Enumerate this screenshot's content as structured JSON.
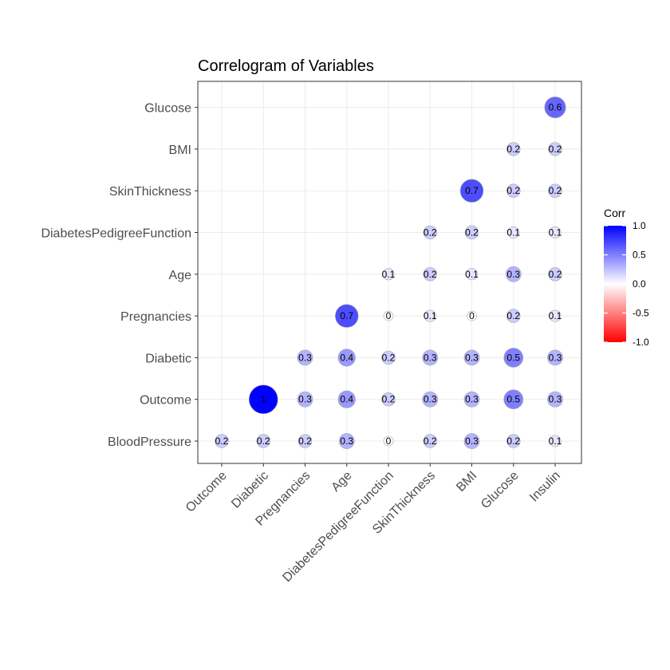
{
  "chart_data": {
    "type": "heatmap",
    "title": "Correlogram of Variables",
    "xlabel": "",
    "ylabel": "",
    "x_categories": [
      "Outcome",
      "Diabetic",
      "Pregnancies",
      "Age",
      "DiabetesPedigreeFunction",
      "SkinThickness",
      "BMI",
      "Glucose",
      "Insulin"
    ],
    "y_categories": [
      "BloodPressure",
      "Outcome",
      "Diabetic",
      "Pregnancies",
      "Age",
      "DiabetesPedigreeFunction",
      "SkinThickness",
      "BMI",
      "Glucose"
    ],
    "cells": [
      {
        "x": "Outcome",
        "y": "BloodPressure",
        "value": 0.2
      },
      {
        "x": "Diabetic",
        "y": "BloodPressure",
        "value": 0.2
      },
      {
        "x": "Pregnancies",
        "y": "BloodPressure",
        "value": 0.2
      },
      {
        "x": "Age",
        "y": "BloodPressure",
        "value": 0.3
      },
      {
        "x": "DiabetesPedigreeFunction",
        "y": "BloodPressure",
        "value": 0
      },
      {
        "x": "SkinThickness",
        "y": "BloodPressure",
        "value": 0.2
      },
      {
        "x": "BMI",
        "y": "BloodPressure",
        "value": 0.3
      },
      {
        "x": "Glucose",
        "y": "BloodPressure",
        "value": 0.2
      },
      {
        "x": "Insulin",
        "y": "BloodPressure",
        "value": 0.1
      },
      {
        "x": "Diabetic",
        "y": "Outcome",
        "value": 1
      },
      {
        "x": "Pregnancies",
        "y": "Outcome",
        "value": 0.3
      },
      {
        "x": "Age",
        "y": "Outcome",
        "value": 0.4
      },
      {
        "x": "DiabetesPedigreeFunction",
        "y": "Outcome",
        "value": 0.2
      },
      {
        "x": "SkinThickness",
        "y": "Outcome",
        "value": 0.3
      },
      {
        "x": "BMI",
        "y": "Outcome",
        "value": 0.3
      },
      {
        "x": "Glucose",
        "y": "Outcome",
        "value": 0.5
      },
      {
        "x": "Insulin",
        "y": "Outcome",
        "value": 0.3
      },
      {
        "x": "Pregnancies",
        "y": "Diabetic",
        "value": 0.3
      },
      {
        "x": "Age",
        "y": "Diabetic",
        "value": 0.4
      },
      {
        "x": "DiabetesPedigreeFunction",
        "y": "Diabetic",
        "value": 0.2
      },
      {
        "x": "SkinThickness",
        "y": "Diabetic",
        "value": 0.3
      },
      {
        "x": "BMI",
        "y": "Diabetic",
        "value": 0.3
      },
      {
        "x": "Glucose",
        "y": "Diabetic",
        "value": 0.5
      },
      {
        "x": "Insulin",
        "y": "Diabetic",
        "value": 0.3
      },
      {
        "x": "Age",
        "y": "Pregnancies",
        "value": 0.7
      },
      {
        "x": "DiabetesPedigreeFunction",
        "y": "Pregnancies",
        "value": 0
      },
      {
        "x": "SkinThickness",
        "y": "Pregnancies",
        "value": 0.1
      },
      {
        "x": "BMI",
        "y": "Pregnancies",
        "value": 0
      },
      {
        "x": "Glucose",
        "y": "Pregnancies",
        "value": 0.2
      },
      {
        "x": "Insulin",
        "y": "Pregnancies",
        "value": 0.1
      },
      {
        "x": "DiabetesPedigreeFunction",
        "y": "Age",
        "value": 0.1
      },
      {
        "x": "SkinThickness",
        "y": "Age",
        "value": 0.2
      },
      {
        "x": "BMI",
        "y": "Age",
        "value": 0.1
      },
      {
        "x": "Glucose",
        "y": "Age",
        "value": 0.3
      },
      {
        "x": "Insulin",
        "y": "Age",
        "value": 0.2
      },
      {
        "x": "SkinThickness",
        "y": "DiabetesPedigreeFunction",
        "value": 0.2
      },
      {
        "x": "BMI",
        "y": "DiabetesPedigreeFunction",
        "value": 0.2
      },
      {
        "x": "Glucose",
        "y": "DiabetesPedigreeFunction",
        "value": 0.1
      },
      {
        "x": "Insulin",
        "y": "DiabetesPedigreeFunction",
        "value": 0.1
      },
      {
        "x": "BMI",
        "y": "SkinThickness",
        "value": 0.7
      },
      {
        "x": "Glucose",
        "y": "SkinThickness",
        "value": 0.2
      },
      {
        "x": "Insulin",
        "y": "SkinThickness",
        "value": 0.2
      },
      {
        "x": "Glucose",
        "y": "BMI",
        "value": 0.2
      },
      {
        "x": "Insulin",
        "y": "BMI",
        "value": 0.2
      },
      {
        "x": "Insulin",
        "y": "Glucose",
        "value": 0.6
      }
    ],
    "legend": {
      "title": "Corr",
      "ticks": [
        "1.0",
        "0.5",
        "0.0",
        "-0.5",
        "-1.0"
      ],
      "tick_values": [
        1.0,
        0.5,
        0.0,
        -0.5,
        -1.0
      ],
      "range": [
        -1,
        1
      ],
      "colors": {
        "low": "#ff0000",
        "mid": "#ffffff",
        "high": "#0000ff"
      },
      "placement": "right"
    },
    "grid": true
  }
}
